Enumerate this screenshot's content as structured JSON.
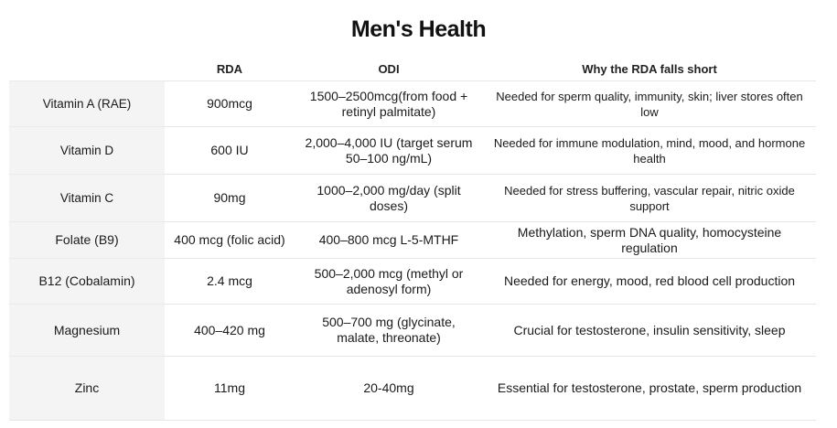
{
  "title": "Men's Health",
  "headers": [
    "",
    "RDA",
    "ODI",
    "Why the RDA falls short"
  ],
  "rows": [
    {
      "nutrient": "Vitamin A (RAE)",
      "rda": "900mcg",
      "odi": "1500–2500mcg(from food + retinyl palmitate)",
      "why": "Needed for sperm quality, immunity, skin; liver stores often low"
    },
    {
      "nutrient": "Vitamin D",
      "rda": "600 IU",
      "odi": "2,000–4,000 IU (target serum 50–100 ng/mL)",
      "why": "Needed for immune modulation, mind, mood, and hormone health"
    },
    {
      "nutrient": "Vitamin C",
      "rda": "90mg",
      "odi": "1000–2,000 mg/day (split doses)",
      "why": "Needed for stress buffering, vascular repair, nitric oxide support"
    },
    {
      "nutrient": "Folate (B9)",
      "rda": "400 mcg (folic acid)",
      "odi": "400–800 mcg L-5-MTHF",
      "why": "Methylation, sperm DNA quality, homocysteine regulation"
    },
    {
      "nutrient": "B12 (Cobalamin)",
      "rda": "2.4 mcg",
      "odi": "500–2,000 mcg (methyl or adenosyl form)",
      "why": "Needed for energy, mood, red blood cell production"
    },
    {
      "nutrient": "Magnesium",
      "rda": "400–420 mg",
      "odi": "500–700 mg (glycinate, malate, threonate)",
      "why": "Crucial for testosterone, insulin sensitivity, sleep"
    },
    {
      "nutrient": "Zinc",
      "rda": "11mg",
      "odi": "20-40mg",
      "why": "Essential for testosterone, prostate, sperm production"
    }
  ]
}
